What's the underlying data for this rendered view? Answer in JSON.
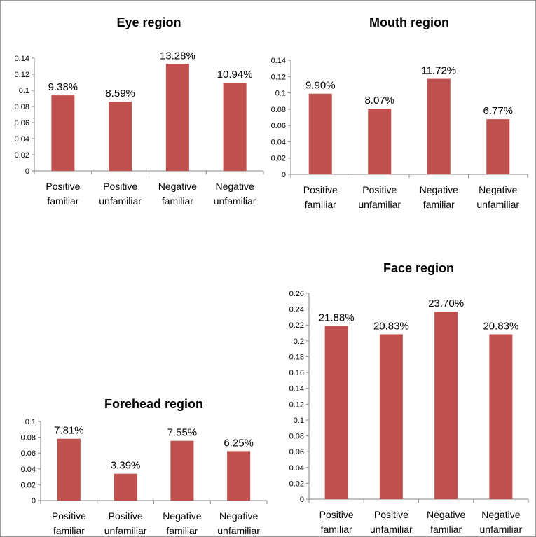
{
  "chart_data": [
    {
      "id": "eye",
      "type": "bar",
      "title": "Eye region",
      "categories": [
        [
          "Positive",
          "familiar"
        ],
        [
          "Positive",
          "unfamiliar"
        ],
        [
          "Negative",
          "familiar"
        ],
        [
          "Negative",
          "unfamiliar"
        ]
      ],
      "values": [
        0.0938,
        0.0859,
        0.1328,
        0.1094
      ],
      "data_labels": [
        "9.38%",
        "8.59%",
        "13.28%",
        "10.94%"
      ],
      "ylim": [
        0,
        0.14
      ],
      "yticks": [
        "0",
        "0.02",
        "0.04",
        "0.06",
        "0.08",
        "0.1",
        "0.12",
        "0.14"
      ],
      "grid": false,
      "bar_color": "#C0504D"
    },
    {
      "id": "mouth",
      "type": "bar",
      "title": "Mouth region",
      "categories": [
        [
          "Positive",
          "familiar"
        ],
        [
          "Positive",
          "unfamiliar"
        ],
        [
          "Negative",
          "familiar"
        ],
        [
          "Negative",
          "unfamiliar"
        ]
      ],
      "values": [
        0.099,
        0.0807,
        0.1172,
        0.0677
      ],
      "data_labels": [
        "9.90%",
        "8.07%",
        "11.72%",
        "6.77%"
      ],
      "ylim": [
        0,
        0.14
      ],
      "yticks": [
        "0",
        "0.02",
        "0.04",
        "0.06",
        "0.08",
        "0.1",
        "0.12",
        "0.14"
      ],
      "grid": false,
      "bar_color": "#C0504D"
    },
    {
      "id": "forehead",
      "type": "bar",
      "title": "Forehead region",
      "categories": [
        [
          "Positive",
          "familiar"
        ],
        [
          "Positive",
          "unfamiliar"
        ],
        [
          "Negative",
          "familiar"
        ],
        [
          "Negative",
          "unfamiliar"
        ]
      ],
      "values": [
        0.0781,
        0.0339,
        0.0755,
        0.0625
      ],
      "data_labels": [
        "7.81%",
        "3.39%",
        "7.55%",
        "6.25%"
      ],
      "ylim": [
        0,
        0.1
      ],
      "yticks": [
        "0",
        "0.02",
        "0.04",
        "0.06",
        "0.08",
        "0.1"
      ],
      "grid": false,
      "bar_color": "#C0504D"
    },
    {
      "id": "face",
      "type": "bar",
      "title": "Face region",
      "categories": [
        [
          "Positive",
          "familiar"
        ],
        [
          "Positive",
          "unfamiliar"
        ],
        [
          "Negative",
          "familiar"
        ],
        [
          "Negative",
          "unfamiliar"
        ]
      ],
      "values": [
        0.2188,
        0.2083,
        0.237,
        0.2083
      ],
      "data_labels": [
        "21.88%",
        "20.83%",
        "23.70%",
        "20.83%"
      ],
      "ylim": [
        0,
        0.26
      ],
      "yticks": [
        "0",
        "0.02",
        "0.04",
        "0.06",
        "0.08",
        "0.1",
        "0.12",
        "0.14",
        "0.16",
        "0.18",
        "0.2",
        "0.22",
        "0.24",
        "0.26"
      ],
      "grid": false,
      "bar_color": "#C0504D"
    }
  ]
}
